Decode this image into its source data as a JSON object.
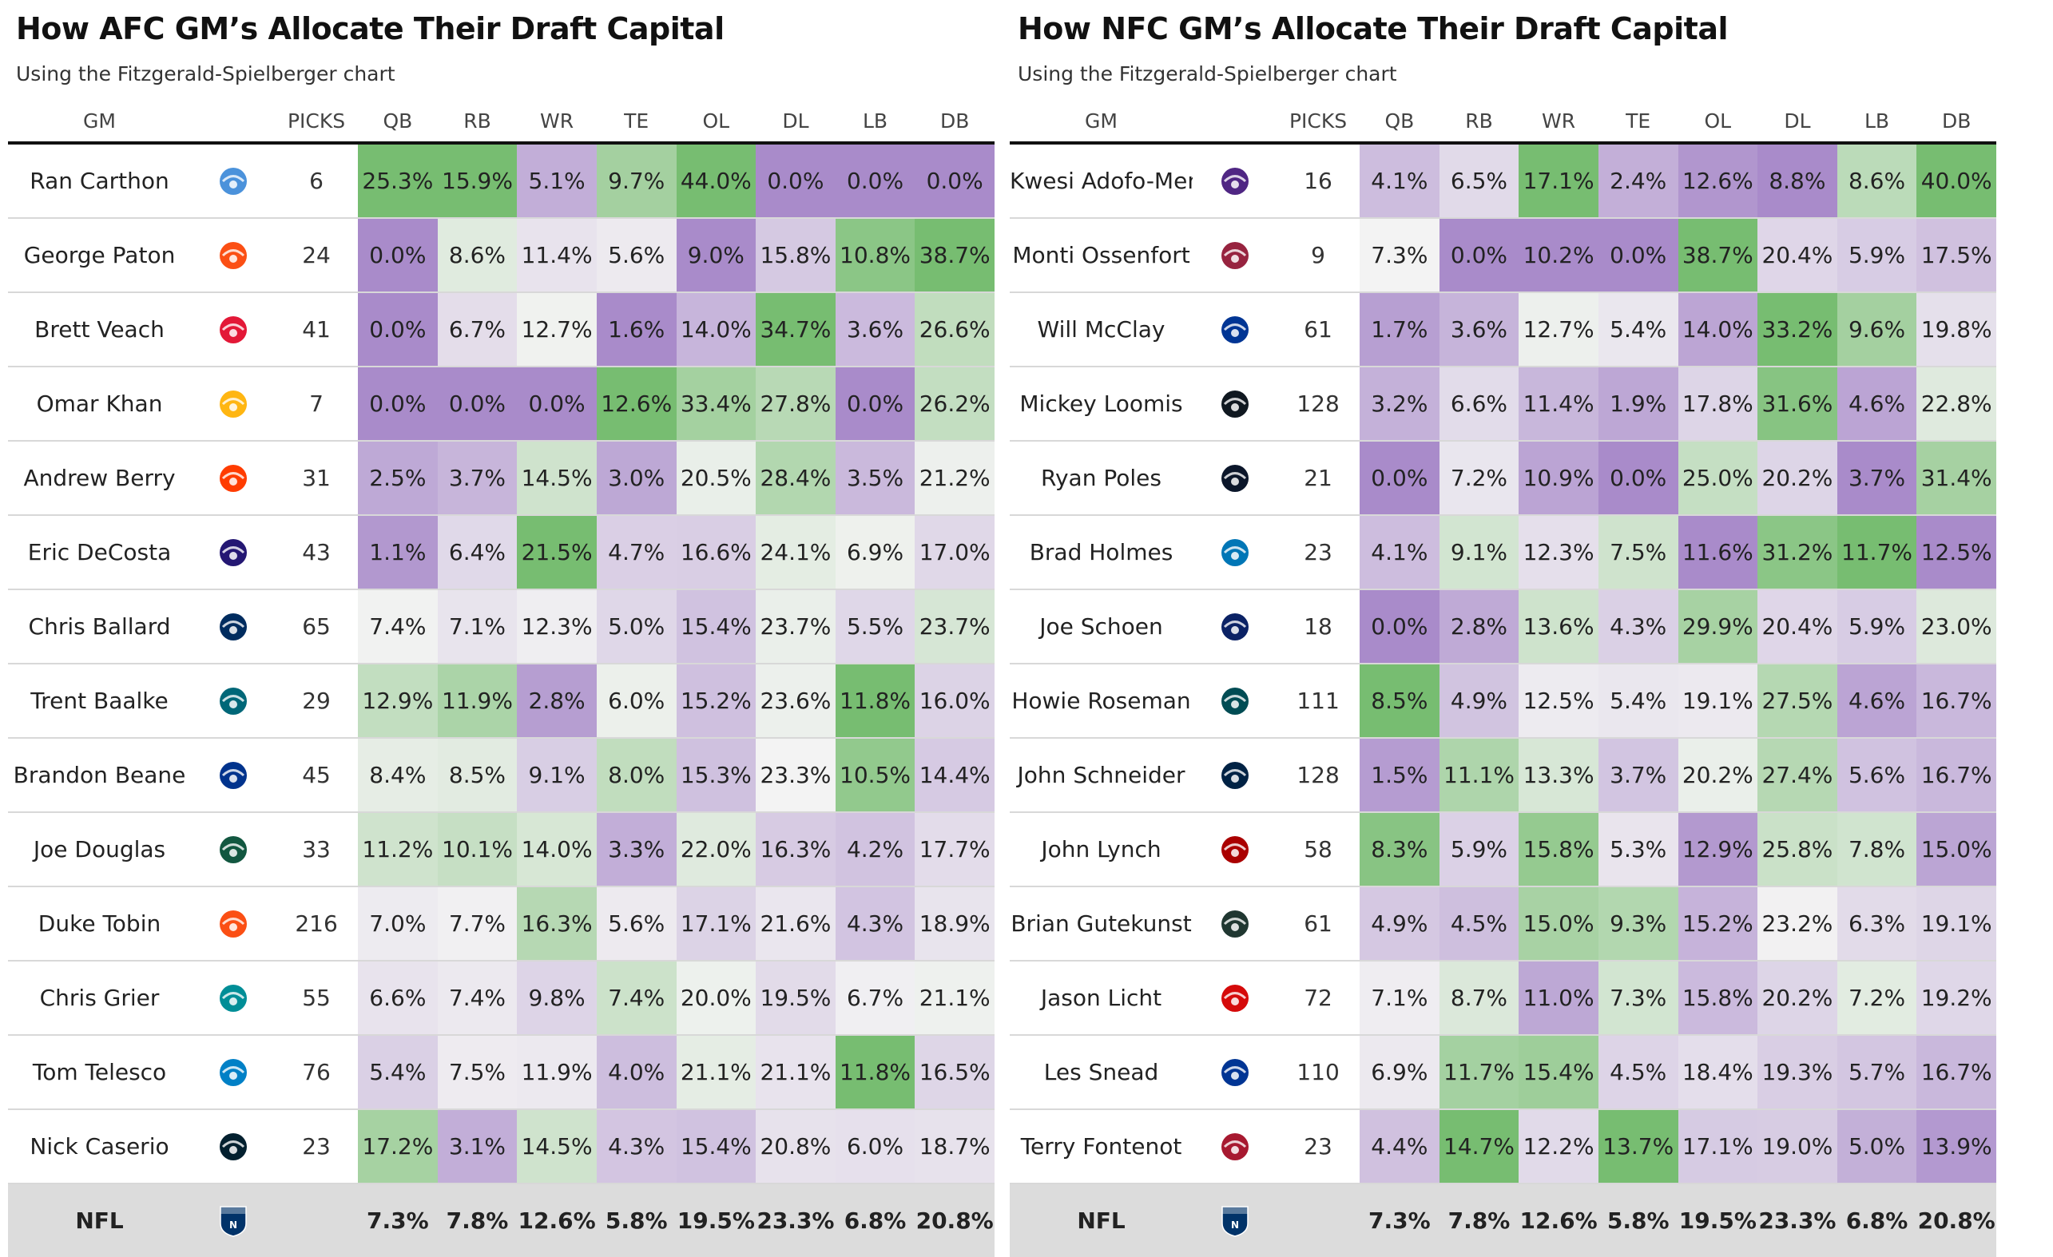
{
  "columns": [
    "GM",
    "PICKS",
    "QB",
    "RB",
    "WR",
    "TE",
    "OL",
    "DL",
    "LB",
    "DB"
  ],
  "colors": {
    "high": "#77bd71",
    "mid": "#f3f3f3",
    "low": "#a98bca",
    "nfl_row": "#dcdcdc"
  },
  "chart_data": [
    {
      "type": "table",
      "title": "How AFC GM’s Allocate Their Draft Capital",
      "subtitle": "Using the Fitzgerald-Spielberger chart",
      "rows": [
        {
          "gm": "Ran Carthon",
          "team_icon": "titans-logo-icon",
          "color": "#4b92db",
          "picks": "6",
          "values": [
            "25.3%",
            "15.9%",
            "5.1%",
            "9.7%",
            "44.0%",
            "0.0%",
            "0.0%",
            "0.0%"
          ]
        },
        {
          "gm": "George Paton",
          "team_icon": "broncos-logo-icon",
          "color": "#fb4f14",
          "picks": "24",
          "values": [
            "0.0%",
            "8.6%",
            "11.4%",
            "5.6%",
            "9.0%",
            "15.8%",
            "10.8%",
            "38.7%"
          ]
        },
        {
          "gm": "Brett Veach",
          "team_icon": "chiefs-logo-icon",
          "color": "#e31837",
          "picks": "41",
          "values": [
            "0.0%",
            "6.7%",
            "12.7%",
            "1.6%",
            "14.0%",
            "34.7%",
            "3.6%",
            "26.6%"
          ]
        },
        {
          "gm": "Omar Khan",
          "team_icon": "steelers-logo-icon",
          "color": "#ffb612",
          "picks": "7",
          "values": [
            "0.0%",
            "0.0%",
            "0.0%",
            "12.6%",
            "33.4%",
            "27.8%",
            "0.0%",
            "26.2%"
          ]
        },
        {
          "gm": "Andrew Berry",
          "team_icon": "browns-logo-icon",
          "color": "#ff3c00",
          "picks": "31",
          "values": [
            "2.5%",
            "3.7%",
            "14.5%",
            "3.0%",
            "20.5%",
            "28.4%",
            "3.5%",
            "21.2%"
          ]
        },
        {
          "gm": "Eric DeCosta",
          "team_icon": "ravens-logo-icon",
          "color": "#241773",
          "picks": "43",
          "values": [
            "1.1%",
            "6.4%",
            "21.5%",
            "4.7%",
            "16.6%",
            "24.1%",
            "6.9%",
            "17.0%"
          ]
        },
        {
          "gm": "Chris Ballard",
          "team_icon": "colts-logo-icon",
          "color": "#002c5f",
          "picks": "65",
          "values": [
            "7.4%",
            "7.1%",
            "12.3%",
            "5.0%",
            "15.4%",
            "23.7%",
            "5.5%",
            "23.7%"
          ]
        },
        {
          "gm": "Trent Baalke",
          "team_icon": "jaguars-logo-icon",
          "color": "#006778",
          "picks": "29",
          "values": [
            "12.9%",
            "11.9%",
            "2.8%",
            "6.0%",
            "15.2%",
            "23.6%",
            "11.8%",
            "16.0%"
          ]
        },
        {
          "gm": "Brandon Beane",
          "team_icon": "bills-logo-icon",
          "color": "#00338d",
          "picks": "45",
          "values": [
            "8.4%",
            "8.5%",
            "9.1%",
            "8.0%",
            "15.3%",
            "23.3%",
            "10.5%",
            "14.4%"
          ]
        },
        {
          "gm": "Joe Douglas",
          "team_icon": "jets-logo-icon",
          "color": "#125740",
          "picks": "33",
          "values": [
            "11.2%",
            "10.1%",
            "14.0%",
            "3.3%",
            "22.0%",
            "16.3%",
            "4.2%",
            "17.7%"
          ]
        },
        {
          "gm": "Duke Tobin",
          "team_icon": "bengals-logo-icon",
          "color": "#fb4f14",
          "picks": "216",
          "values": [
            "7.0%",
            "7.7%",
            "16.3%",
            "5.6%",
            "17.1%",
            "21.6%",
            "4.3%",
            "18.9%"
          ]
        },
        {
          "gm": "Chris Grier",
          "team_icon": "dolphins-logo-icon",
          "color": "#008e97",
          "picks": "55",
          "values": [
            "6.6%",
            "7.4%",
            "9.8%",
            "7.4%",
            "20.0%",
            "19.5%",
            "6.7%",
            "21.1%"
          ]
        },
        {
          "gm": "Tom Telesco",
          "team_icon": "chargers-logo-icon",
          "color": "#0080c6",
          "picks": "76",
          "values": [
            "5.4%",
            "7.5%",
            "11.9%",
            "4.0%",
            "21.1%",
            "21.1%",
            "11.8%",
            "16.5%"
          ]
        },
        {
          "gm": "Nick Caserio",
          "team_icon": "texans-logo-icon",
          "color": "#03202f",
          "picks": "23",
          "values": [
            "17.2%",
            "3.1%",
            "14.5%",
            "4.3%",
            "15.4%",
            "20.8%",
            "6.0%",
            "18.7%"
          ]
        }
      ],
      "summary": {
        "gm": "NFL",
        "team_icon": "nfl-logo-icon",
        "color": "#013369",
        "picks": "",
        "values": [
          "7.3%",
          "7.8%",
          "12.6%",
          "5.8%",
          "19.5%",
          "23.3%",
          "6.8%",
          "20.8%"
        ]
      }
    },
    {
      "type": "table",
      "title": "How NFC GM’s Allocate Their Draft Capital",
      "subtitle": "Using the Fitzgerald-Spielberger chart",
      "rows": [
        {
          "gm": "Kwesi Adofo-Mensah",
          "team_icon": "vikings-logo-icon",
          "color": "#4f2683",
          "picks": "16",
          "values": [
            "4.1%",
            "6.5%",
            "17.1%",
            "2.4%",
            "12.6%",
            "8.8%",
            "8.6%",
            "40.0%"
          ]
        },
        {
          "gm": "Monti Ossenfort",
          "team_icon": "cardinals-logo-icon",
          "color": "#97233f",
          "picks": "9",
          "values": [
            "7.3%",
            "0.0%",
            "10.2%",
            "0.0%",
            "38.7%",
            "20.4%",
            "5.9%",
            "17.5%"
          ]
        },
        {
          "gm": "Will McClay",
          "team_icon": "cowboys-logo-icon",
          "color": "#003594",
          "picks": "61",
          "values": [
            "1.7%",
            "3.6%",
            "12.7%",
            "5.4%",
            "14.0%",
            "33.2%",
            "9.6%",
            "19.8%"
          ]
        },
        {
          "gm": "Mickey Loomis",
          "team_icon": "saints-logo-icon",
          "color": "#101820",
          "picks": "128",
          "values": [
            "3.2%",
            "6.6%",
            "11.4%",
            "1.9%",
            "17.8%",
            "31.6%",
            "4.6%",
            "22.8%"
          ]
        },
        {
          "gm": "Ryan Poles",
          "team_icon": "bears-logo-icon",
          "color": "#0b162a",
          "picks": "21",
          "values": [
            "0.0%",
            "7.2%",
            "10.9%",
            "0.0%",
            "25.0%",
            "20.2%",
            "3.7%",
            "31.4%"
          ]
        },
        {
          "gm": "Brad Holmes",
          "team_icon": "lions-logo-icon",
          "color": "#0076b6",
          "picks": "23",
          "values": [
            "4.1%",
            "9.1%",
            "12.3%",
            "7.5%",
            "11.6%",
            "31.2%",
            "11.7%",
            "12.5%"
          ]
        },
        {
          "gm": "Joe Schoen",
          "team_icon": "giants-logo-icon",
          "color": "#0b2265",
          "picks": "18",
          "values": [
            "0.0%",
            "2.8%",
            "13.6%",
            "4.3%",
            "29.9%",
            "20.4%",
            "5.9%",
            "23.0%"
          ]
        },
        {
          "gm": "Howie Roseman",
          "team_icon": "eagles-logo-icon",
          "color": "#004c54",
          "picks": "111",
          "values": [
            "8.5%",
            "4.9%",
            "12.5%",
            "5.4%",
            "19.1%",
            "27.5%",
            "4.6%",
            "16.7%"
          ]
        },
        {
          "gm": "John Schneider",
          "team_icon": "seahawks-logo-icon",
          "color": "#002244",
          "picks": "128",
          "values": [
            "1.5%",
            "11.1%",
            "13.3%",
            "3.7%",
            "20.2%",
            "27.4%",
            "5.6%",
            "16.7%"
          ]
        },
        {
          "gm": "John Lynch",
          "team_icon": "49ers-logo-icon",
          "color": "#aa0000",
          "picks": "58",
          "values": [
            "8.3%",
            "5.9%",
            "15.8%",
            "5.3%",
            "12.9%",
            "25.8%",
            "7.8%",
            "15.0%"
          ]
        },
        {
          "gm": "Brian Gutekunst",
          "team_icon": "packers-logo-icon",
          "color": "#203731",
          "picks": "61",
          "values": [
            "4.9%",
            "4.5%",
            "15.0%",
            "9.3%",
            "15.2%",
            "23.2%",
            "6.3%",
            "19.1%"
          ]
        },
        {
          "gm": "Jason Licht",
          "team_icon": "buccaneers-logo-icon",
          "color": "#d50a0a",
          "picks": "72",
          "values": [
            "7.1%",
            "8.7%",
            "11.0%",
            "7.3%",
            "15.8%",
            "20.2%",
            "7.2%",
            "19.2%"
          ]
        },
        {
          "gm": "Les Snead",
          "team_icon": "rams-logo-icon",
          "color": "#003594",
          "picks": "110",
          "values": [
            "6.9%",
            "11.7%",
            "15.4%",
            "4.5%",
            "18.4%",
            "19.3%",
            "5.7%",
            "16.7%"
          ]
        },
        {
          "gm": "Terry Fontenot",
          "team_icon": "falcons-logo-icon",
          "color": "#a71930",
          "picks": "23",
          "values": [
            "4.4%",
            "14.7%",
            "12.2%",
            "13.7%",
            "17.1%",
            "19.0%",
            "5.0%",
            "13.9%"
          ]
        }
      ],
      "summary": {
        "gm": "NFL",
        "team_icon": "nfl-logo-icon",
        "color": "#013369",
        "picks": "",
        "values": [
          "7.3%",
          "7.8%",
          "12.6%",
          "5.8%",
          "19.5%",
          "23.3%",
          "6.8%",
          "20.8%"
        ]
      }
    }
  ]
}
